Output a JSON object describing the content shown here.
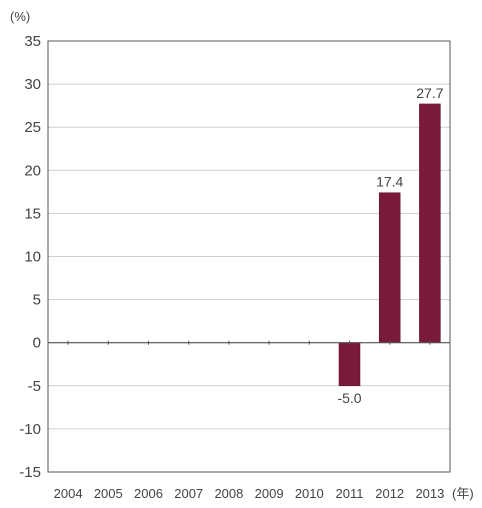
{
  "chart_data": {
    "type": "bar",
    "title": "",
    "xlabel": "",
    "ylabel": "",
    "y_unit_label": "(%)",
    "x_unit_label": "(年)",
    "categories": [
      "2004",
      "2005",
      "2006",
      "2007",
      "2008",
      "2009",
      "2010",
      "2011",
      "2012",
      "2013"
    ],
    "values": [
      null,
      null,
      null,
      null,
      null,
      null,
      null,
      -5.0,
      17.4,
      27.7
    ],
    "data_labels": [
      "",
      "",
      "",
      "",
      "",
      "",
      "",
      "-5.0",
      "17.4",
      "27.7"
    ],
    "ylim": [
      -15,
      35
    ],
    "yticks": [
      "35",
      "30",
      "25",
      "20",
      "15",
      "10",
      "5",
      "0",
      "-5",
      "-10",
      "-15"
    ],
    "grid": true,
    "legend": "none",
    "colors": {
      "bar": "#7a1a3a",
      "grid": "#cfcfcf",
      "axis": "#555555"
    }
  }
}
